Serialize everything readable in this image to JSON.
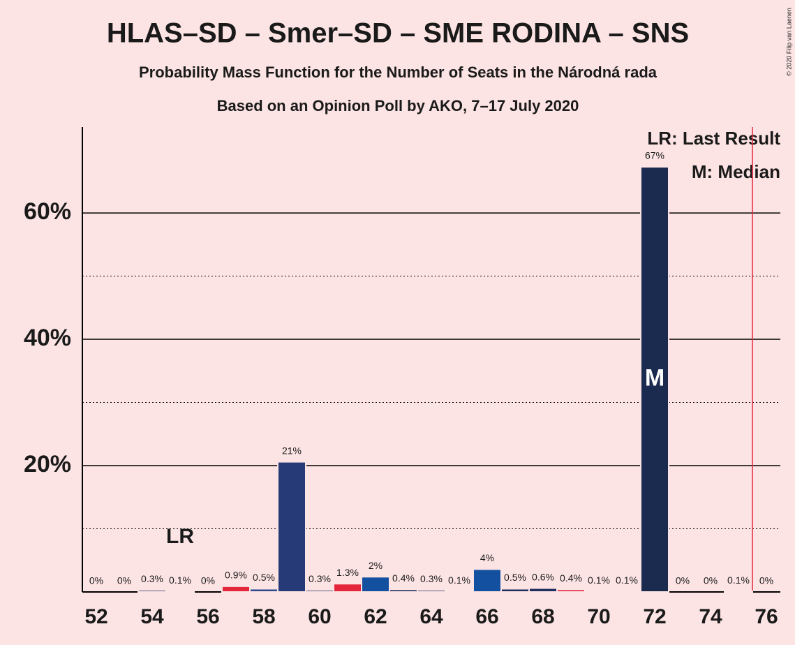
{
  "chart_data": {
    "type": "bar",
    "title": "HLAS–SD – Smer–SD – SME RODINA – SNS",
    "subtitle": "Probability Mass Function for the Number of Seats in the Národná rada",
    "subtitle2": "Based on an Opinion Poll by AKO, 7–17 July 2020",
    "copyright": "© 2020 Filip van Laenen",
    "x": [
      52,
      53,
      54,
      55,
      56,
      57,
      58,
      59,
      60,
      61,
      62,
      63,
      64,
      65,
      66,
      67,
      68,
      69,
      70,
      71,
      72,
      73,
      74,
      75,
      76
    ],
    "values": [
      0,
      0,
      0.3,
      0.1,
      0,
      0.9,
      0.5,
      20.6,
      0.3,
      1.3,
      2.4,
      0.4,
      0.3,
      0.1,
      3.6,
      0.5,
      0.6,
      0.4,
      0.1,
      0.1,
      67.3,
      0,
      0,
      0.1,
      0
    ],
    "value_labels": [
      "0%",
      "0%",
      "0.3%",
      "0.1%",
      "0%",
      "0.9%",
      "0.5%",
      "21%",
      "0.3%",
      "1.3%",
      "2%",
      "0.4%",
      "0.3%",
      "0.1%",
      "4%",
      "0.5%",
      "0.6%",
      "0.4%",
      "0.1%",
      "0.1%",
      "67%",
      "0%",
      "0%",
      "0.1%",
      "0%"
    ],
    "colors": [
      "#1f2f5e",
      "#1f2f5e",
      "#1f2f5e",
      "#1f2f5e",
      "#1f2f5e",
      "#e3263c",
      "#2c4a8c",
      "#263a78",
      "#1f2f5e",
      "#e3263c",
      "#1450a0",
      "#1f2f5e",
      "#1f2f5e",
      "#1f2f5e",
      "#1450a0",
      "#1f2f5e",
      "#1f2f5e",
      "#e3263c",
      "#1f2f5e",
      "#1f2f5e",
      "#1b2b4f",
      "#1f2f5e",
      "#1f2f5e",
      "#1f2f5e",
      "#1f2f5e"
    ],
    "xlim": [
      51.5,
      76.5
    ],
    "xticks": [
      52,
      54,
      56,
      58,
      60,
      62,
      64,
      66,
      68,
      70,
      72,
      74,
      76
    ],
    "ylim": [
      0,
      73.6
    ],
    "yticks": [
      {
        "value": 20,
        "label": "20%"
      },
      {
        "value": 40,
        "label": "40%"
      },
      {
        "value": 60,
        "label": "60%"
      }
    ],
    "yminor": [
      10,
      30,
      50
    ],
    "grid": true,
    "last_result": {
      "x": 55,
      "label": "LR",
      "legend": "LR: Last Result"
    },
    "median": {
      "x": 72,
      "label": "M",
      "legend": "M: Median"
    },
    "majority": 75.5,
    "majority_color": "#e3263c"
  }
}
